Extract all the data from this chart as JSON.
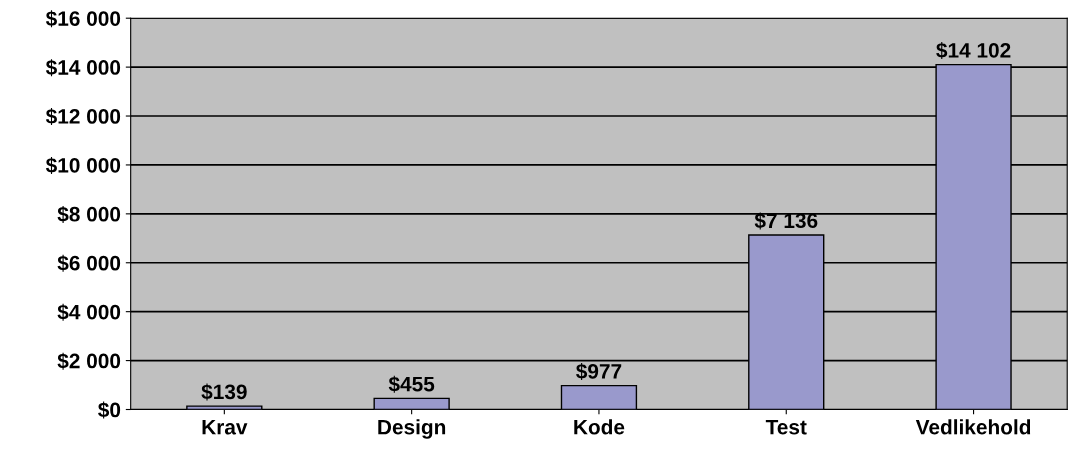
{
  "chart_data": {
    "type": "bar",
    "categories": [
      "Krav",
      "Design",
      "Kode",
      "Test",
      "Vedlikehold"
    ],
    "values": [
      139,
      455,
      977,
      7136,
      14102
    ],
    "value_labels": [
      "$139",
      "$455",
      "$977",
      "$7 136",
      "$14 102"
    ],
    "color": "#9999cc",
    "ylim": [
      0,
      16000
    ],
    "yticks": [
      {
        "value": 0,
        "label": "$0"
      },
      {
        "value": 2000,
        "label": "$2 000"
      },
      {
        "value": 4000,
        "label": "$4 000"
      },
      {
        "value": 6000,
        "label": "$6 000"
      },
      {
        "value": 8000,
        "label": "$8 000"
      },
      {
        "value": 10000,
        "label": "$10 000"
      },
      {
        "value": 12000,
        "label": "$12 000"
      },
      {
        "value": 14000,
        "label": "$14 000"
      },
      {
        "value": 16000,
        "label": "$16 000"
      }
    ],
    "grid": "y",
    "legend": false
  }
}
